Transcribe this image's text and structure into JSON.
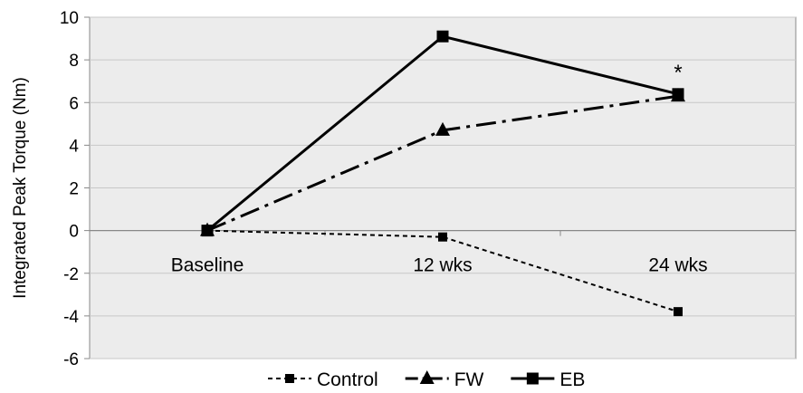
{
  "chart_data": {
    "type": "line",
    "title": "",
    "xlabel": "",
    "ylabel": "Integrated Peak Torque (Nm)",
    "categories": [
      "Baseline",
      "12 wks",
      "24 wks"
    ],
    "ylim": [
      -6,
      10
    ],
    "yticks": [
      "-6",
      "-4",
      "-2",
      "0",
      "2",
      "4",
      "6",
      "8",
      "10"
    ],
    "grid": true,
    "legend_position": "bottom",
    "series": [
      {
        "name": "Control",
        "values": [
          0,
          -0.3,
          -3.8
        ],
        "marker": "square-small",
        "line": "dotted",
        "color": "#000000"
      },
      {
        "name": "FW",
        "values": [
          0,
          4.7,
          6.3
        ],
        "marker": "triangle",
        "line": "dash-dot",
        "color": "#000000"
      },
      {
        "name": "EB",
        "values": [
          0,
          9.1,
          6.4
        ],
        "marker": "square",
        "line": "solid",
        "color": "#000000"
      }
    ],
    "annotations": [
      {
        "text": "*",
        "category": "24 wks",
        "value": 7.5
      }
    ],
    "colors": {
      "plot_background": "#ececec",
      "gridline": "#c8c8c8",
      "axis": "#888888"
    }
  }
}
